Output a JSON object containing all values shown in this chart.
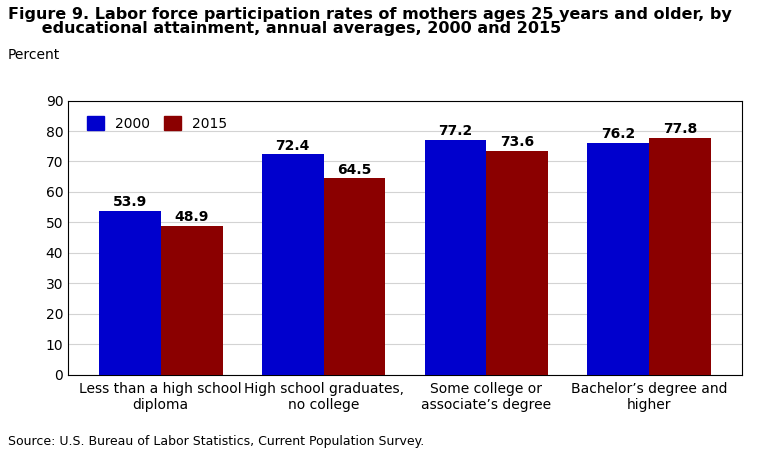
{
  "title_line1": "Figure 9. Labor force participation rates of mothers ages 25 years and older, by",
  "title_line2": "      educational attainment, annual averages, 2000 and 2015",
  "ylabel": "Percent",
  "categories": [
    "Less than a high school\ndiploma",
    "High school graduates,\nno college",
    "Some college or\nassociate’s degree",
    "Bachelor’s degree and\nhigher"
  ],
  "values_2000": [
    53.9,
    72.4,
    77.2,
    76.2
  ],
  "values_2015": [
    48.9,
    64.5,
    73.6,
    77.8
  ],
  "color_2000": "#0000CD",
  "color_2015": "#8B0000",
  "ylim": [
    0,
    90
  ],
  "yticks": [
    0,
    10,
    20,
    30,
    40,
    50,
    60,
    70,
    80,
    90
  ],
  "bar_width": 0.38,
  "legend_labels": [
    "2000",
    "2015"
  ],
  "source_text": "Source: U.S. Bureau of Labor Statistics, Current Population Survey.",
  "background_color": "#FFFFFF",
  "title_fontsize": 11.5,
  "label_fontsize": 10,
  "tick_fontsize": 10,
  "source_fontsize": 9
}
